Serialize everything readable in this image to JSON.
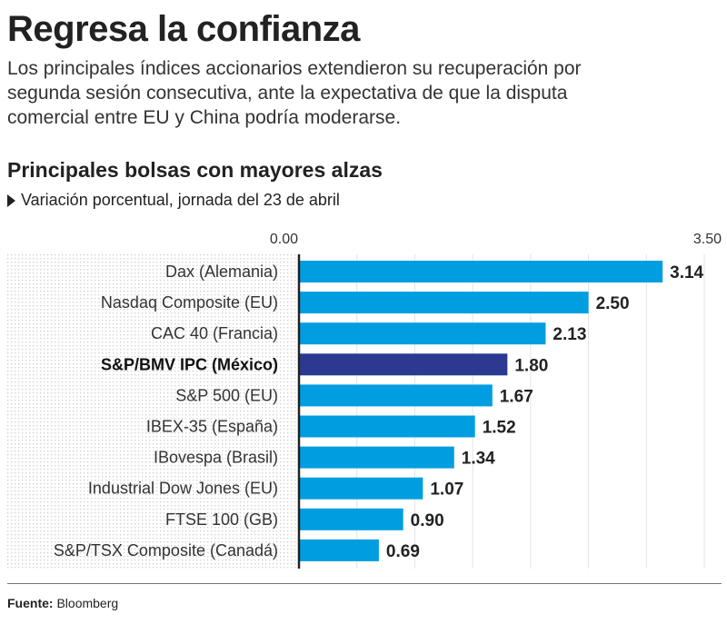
{
  "header": {
    "title": "Regresa la confianza",
    "description": "Los principales índices accionarios extendieron su recuperación por segunda sesión consecutiva, ante la expectativa de que la disputa comercial entre EU y China podría moderarse."
  },
  "chart_data": {
    "type": "bar",
    "orientation": "horizontal",
    "title": "Principales bolsas con mayores alzas",
    "subtitle": "Variación porcentual, jornada del 23 de abril",
    "xlim": [
      0,
      3.5
    ],
    "tick_labels": [
      "0.00",
      "3.50"
    ],
    "grid": true,
    "categories": [
      "Dax (Alemania)",
      "Nasdaq Composite (EU)",
      "CAC 40 (Francia)",
      "S&P/BMV IPC (México)",
      "S&P 500 (EU)",
      "IBEX-35 (España)",
      "IBovespa (Brasil)",
      "Industrial Dow Jones (EU)",
      "FTSE 100 (GB)",
      "S&P/TSX Composite (Canadá)"
    ],
    "values": [
      3.14,
      2.5,
      2.13,
      1.8,
      1.67,
      1.52,
      1.34,
      1.07,
      0.9,
      0.69
    ],
    "value_labels": [
      "3.14",
      "2.50",
      "2.13",
      "1.80",
      "1.67",
      "1.52",
      "1.34",
      "1.07",
      "0.90",
      "0.69"
    ],
    "highlight_index": 3,
    "colors": {
      "bar": "#009ee0",
      "highlight": "#2b3990"
    }
  },
  "footer": {
    "source_label": "Fuente:",
    "source": "Bloomberg"
  }
}
